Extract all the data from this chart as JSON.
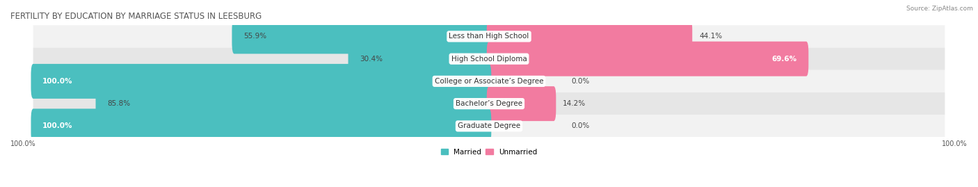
{
  "title": "FERTILITY BY EDUCATION BY MARRIAGE STATUS IN LEESBURG",
  "source": "Source: ZipAtlas.com",
  "categories": [
    "Less than High School",
    "High School Diploma",
    "College or Associate’s Degree",
    "Bachelor’s Degree",
    "Graduate Degree"
  ],
  "married": [
    55.9,
    30.4,
    100.0,
    85.8,
    100.0
  ],
  "unmarried": [
    44.1,
    69.6,
    0.0,
    14.2,
    0.0
  ],
  "married_color": "#4bbfbf",
  "unmarried_color": "#f27ba0",
  "row_bg_colors": [
    "#f2f2f2",
    "#e6e6e6"
  ],
  "title_fontsize": 8.5,
  "label_fontsize": 7.5,
  "value_fontsize": 7.5,
  "tick_fontsize": 7,
  "bar_height": 0.55,
  "figsize": [
    14.06,
    2.69
  ],
  "dpi": 100,
  "axis_label_left": "100.0%",
  "axis_label_right": "100.0%",
  "legend_labels": [
    "Married",
    "Unmarried"
  ]
}
